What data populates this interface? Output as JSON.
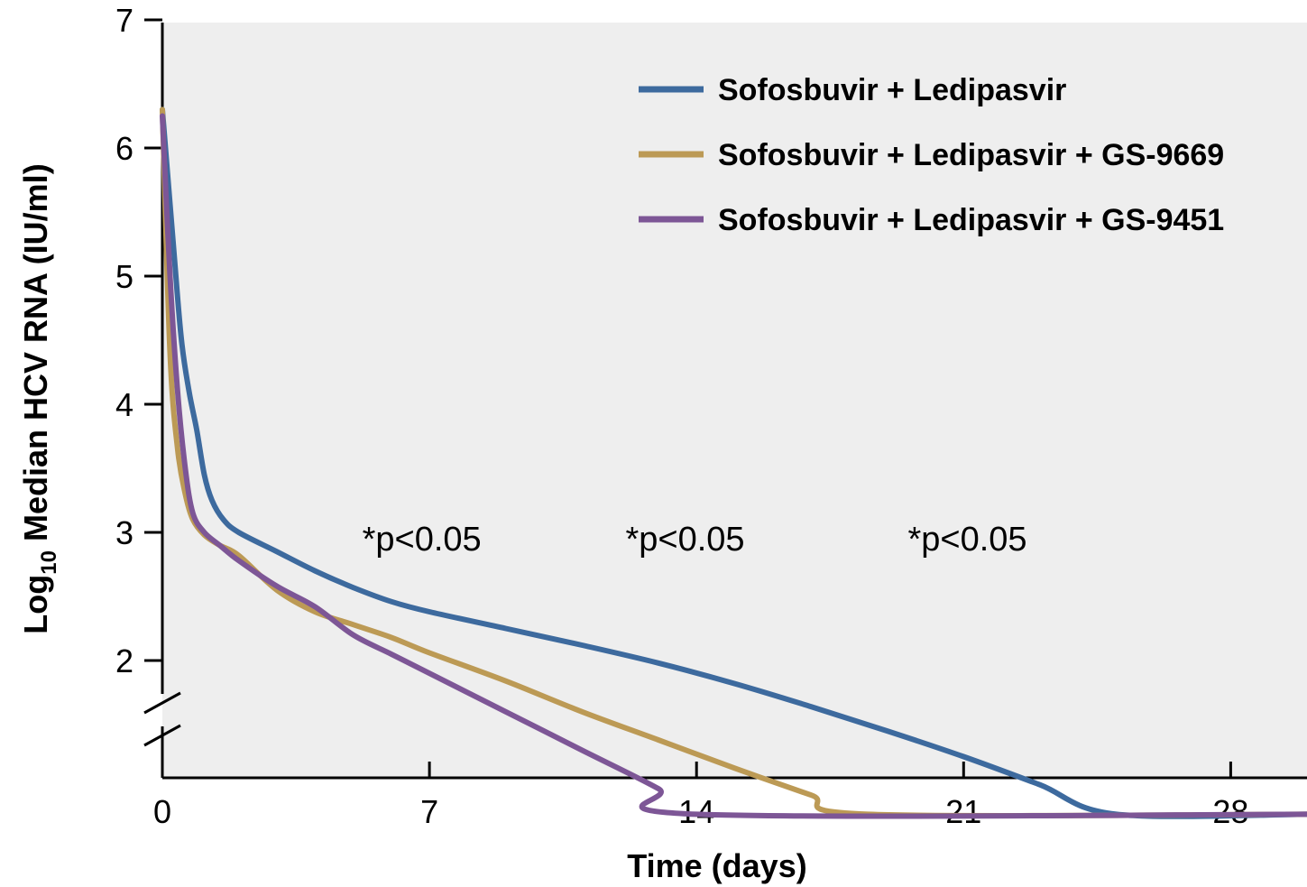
{
  "chart_data": {
    "type": "line",
    "xlabel": "Time (days)",
    "ylabel_main": "Log",
    "ylabel_sub": "10",
    "ylabel_rest": " Median HCV RNA (IU/ml)",
    "x_ticks": [
      0,
      7,
      14,
      21,
      28
    ],
    "y_ticks": [
      2,
      3,
      4,
      5,
      6,
      7
    ],
    "xlim": [
      0,
      30
    ],
    "ylim_display": [
      2,
      7
    ],
    "y_axis_break": true,
    "background": "#eeeeee",
    "annotations": [
      {
        "text": "*p<0.05",
        "x": 6.8,
        "y": 3.0
      },
      {
        "text": "*p<0.05",
        "x": 13.7,
        "y": 3.0
      },
      {
        "text": "*p<0.05",
        "x": 21.1,
        "y": 3.0
      }
    ],
    "legend_position": "top-right",
    "series": [
      {
        "name": "Sofosbuvir + Ledipasvir",
        "color": "#3d6a9e",
        "points": [
          [
            0,
            6.3
          ],
          [
            0.3,
            5.2
          ],
          [
            0.5,
            4.5
          ],
          [
            0.7,
            4.1
          ],
          [
            0.9,
            3.8
          ],
          [
            1.1,
            3.45
          ],
          [
            1.3,
            3.25
          ],
          [
            1.6,
            3.1
          ],
          [
            2,
            3.0
          ],
          [
            3,
            2.85
          ],
          [
            4,
            2.7
          ],
          [
            5,
            2.57
          ],
          [
            6,
            2.46
          ],
          [
            7,
            2.38
          ],
          [
            9,
            2.25
          ],
          [
            11,
            2.12
          ],
          [
            13,
            1.98
          ],
          [
            15,
            1.82
          ],
          [
            17,
            1.64
          ],
          [
            19,
            1.45
          ],
          [
            21,
            1.25
          ],
          [
            23,
            1.03
          ],
          [
            25,
            0.8
          ],
          [
            30,
            0.8
          ]
        ]
      },
      {
        "name": "Sofosbuvir + Ledipasvir + GS-9669",
        "color": "#bc9a55",
        "points": [
          [
            0,
            6.3
          ],
          [
            0.2,
            4.4
          ],
          [
            0.4,
            3.65
          ],
          [
            0.6,
            3.3
          ],
          [
            0.8,
            3.1
          ],
          [
            1.1,
            2.98
          ],
          [
            1.5,
            2.9
          ],
          [
            2,
            2.82
          ],
          [
            3,
            2.55
          ],
          [
            4,
            2.38
          ],
          [
            5,
            2.28
          ],
          [
            6,
            2.18
          ],
          [
            7,
            2.06
          ],
          [
            9,
            1.84
          ],
          [
            11,
            1.6
          ],
          [
            13,
            1.38
          ],
          [
            15,
            1.16
          ],
          [
            17,
            0.95
          ],
          [
            18.5,
            0.8
          ],
          [
            30,
            0.8
          ]
        ]
      },
      {
        "name": "Sofosbuvir + Ledipasvir + GS-9451",
        "color": "#7d5696",
        "points": [
          [
            0,
            6.25
          ],
          [
            0.2,
            5.0
          ],
          [
            0.4,
            4.1
          ],
          [
            0.6,
            3.5
          ],
          [
            0.8,
            3.15
          ],
          [
            1.1,
            3.0
          ],
          [
            1.5,
            2.9
          ],
          [
            2,
            2.78
          ],
          [
            3,
            2.58
          ],
          [
            4,
            2.42
          ],
          [
            5,
            2.2
          ],
          [
            6,
            2.05
          ],
          [
            7,
            1.9
          ],
          [
            9,
            1.6
          ],
          [
            11,
            1.3
          ],
          [
            13,
            1.0
          ],
          [
            14,
            0.8
          ],
          [
            30,
            0.8
          ]
        ]
      }
    ],
    "floor_value_display": 0.8
  }
}
